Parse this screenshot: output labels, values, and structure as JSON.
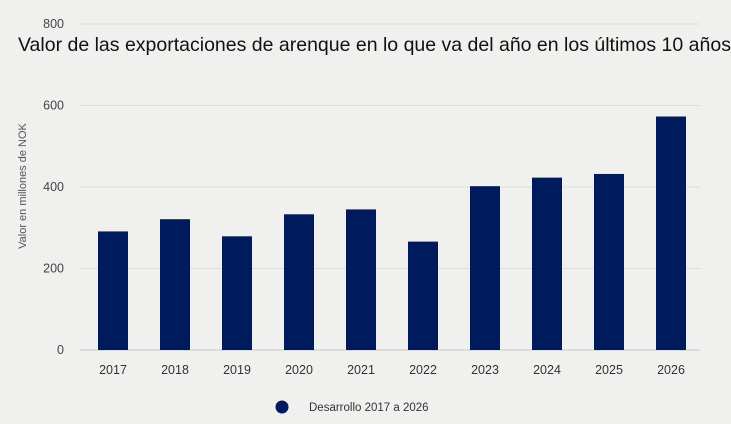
{
  "chart_data": {
    "type": "bar",
    "title": "Valor de las exportaciones de arenque en lo que va del año en los últimos 10 años",
    "xlabel": "",
    "ylabel": "Valor en millones de NOK",
    "ylim": [
      0,
      800
    ],
    "yticks": [
      "0",
      "200",
      "400",
      "600",
      "800"
    ],
    "categories": [
      "2017",
      "2018",
      "2019",
      "2020",
      "2021",
      "2022",
      "2023",
      "2024",
      "2025",
      "2026"
    ],
    "series": [
      {
        "name": "Desarrollo 2017 a 2026",
        "values": [
          291,
          321,
          279,
          333,
          345,
          266,
          402,
          423,
          432,
          573
        ],
        "color": "#001a5e"
      }
    ],
    "grid": true,
    "legend": "bottom"
  }
}
